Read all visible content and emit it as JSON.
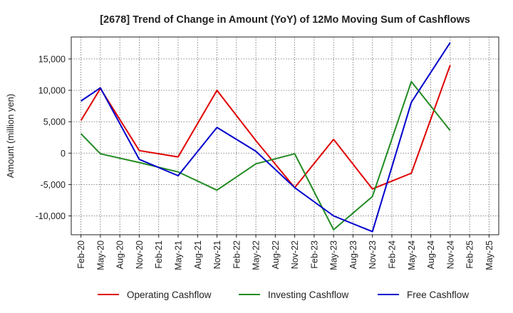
{
  "chart_data": {
    "type": "line",
    "title": "[2678]  Trend of Change in Amount (YoY) of 12Mo Moving Sum of Cashflows",
    "xlabel": "",
    "ylabel": "Amount (million yen)",
    "ylim": [
      -13000,
      18500
    ],
    "yticks": [
      -10000,
      -5000,
      0,
      5000,
      10000,
      15000
    ],
    "ytick_labels": [
      "-10,000",
      "-5,000",
      "0",
      "5,000",
      "10,000",
      "15,000"
    ],
    "categories": [
      "Feb-20",
      "May-20",
      "Aug-20",
      "Nov-20",
      "Feb-21",
      "May-21",
      "Aug-21",
      "Nov-21",
      "Feb-22",
      "May-22",
      "Aug-22",
      "Nov-22",
      "Feb-23",
      "May-23",
      "Aug-23",
      "Nov-23",
      "Feb-24",
      "May-24",
      "Aug-24",
      "Nov-24",
      "Feb-25",
      "May-25"
    ],
    "grid": true,
    "legend_position": "bottom",
    "series": [
      {
        "name": "Operating Cashflow",
        "color": "#e00000",
        "values": [
          5200,
          10300,
          null,
          400,
          null,
          -600,
          null,
          10000,
          null,
          2000,
          null,
          -5500,
          null,
          2200,
          null,
          -5700,
          null,
          -3200,
          null,
          14000,
          null,
          null
        ]
      },
      {
        "name": "Investing Cashflow",
        "color": "#228b22",
        "values": [
          3100,
          -100,
          null,
          -1500,
          null,
          -3000,
          null,
          -5900,
          null,
          -1700,
          null,
          -100,
          null,
          -12200,
          null,
          -6900,
          null,
          11400,
          null,
          3600,
          null,
          null
        ]
      },
      {
        "name": "Free Cashflow",
        "color": "#0000cc",
        "values": [
          8300,
          10400,
          null,
          -1000,
          null,
          -3600,
          null,
          4100,
          null,
          300,
          null,
          -5500,
          null,
          -10000,
          null,
          -12500,
          null,
          8100,
          null,
          17600,
          null,
          null
        ]
      }
    ]
  }
}
